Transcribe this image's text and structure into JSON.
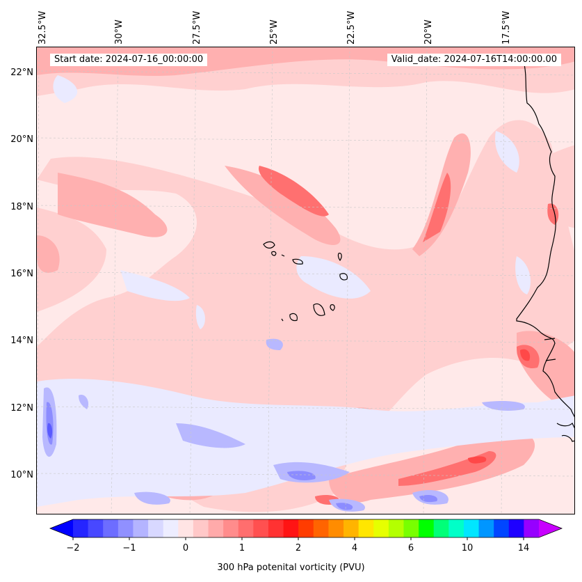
{
  "header": {
    "start_date": "Start date: 2024-07-16_00:00:00",
    "valid_date": "Valid_date: 2024-07-16T14:00:00.00"
  },
  "axes": {
    "lon_labels": [
      "32.5°W",
      "30°W",
      "27.5°W",
      "25°W",
      "22.5°W",
      "20°W",
      "17.5°W"
    ],
    "lat_labels": [
      "22°N",
      "20°N",
      "18°N",
      "16°N",
      "14°N",
      "12°N",
      "10°N"
    ]
  },
  "colorbar": {
    "title": "300 hPa potenital vorticity (PVU)",
    "tick_labels": [
      "−2",
      "−1",
      "0",
      "1",
      "2",
      "4",
      "6",
      "10",
      "14"
    ],
    "colors": [
      "#0000ff",
      "#2525ff",
      "#4848ff",
      "#6d6dff",
      "#9090ff",
      "#b4b4ff",
      "#d8d8ff",
      "#ededff",
      "#ffe4e4",
      "#ffc8c8",
      "#ffaaaa",
      "#ff8c8c",
      "#ff6e6e",
      "#ff5050",
      "#ff3232",
      "#ff1414",
      "#ff3c00",
      "#ff6400",
      "#ff8c00",
      "#ffb400",
      "#ffe600",
      "#e6ff00",
      "#b4ff00",
      "#78ff00",
      "#00ff00",
      "#00ff78",
      "#00ffc8",
      "#00e6ff",
      "#0096ff",
      "#0046ff",
      "#1e00ff",
      "#9600ff",
      "#c800ff"
    ]
  },
  "map_colors": {
    "background": "#ffe9e9",
    "light_pink": "#ffd0d0",
    "mid_pink": "#ffb0b0",
    "red": "#ff7070",
    "deep_red": "#ff4848",
    "light_blue": "#eaeaff",
    "mid_blue": "#b8b8ff",
    "blue": "#8c8cff",
    "deep_blue": "#5a5aff",
    "coast": "#000000",
    "grid": "#c8c8c8"
  }
}
